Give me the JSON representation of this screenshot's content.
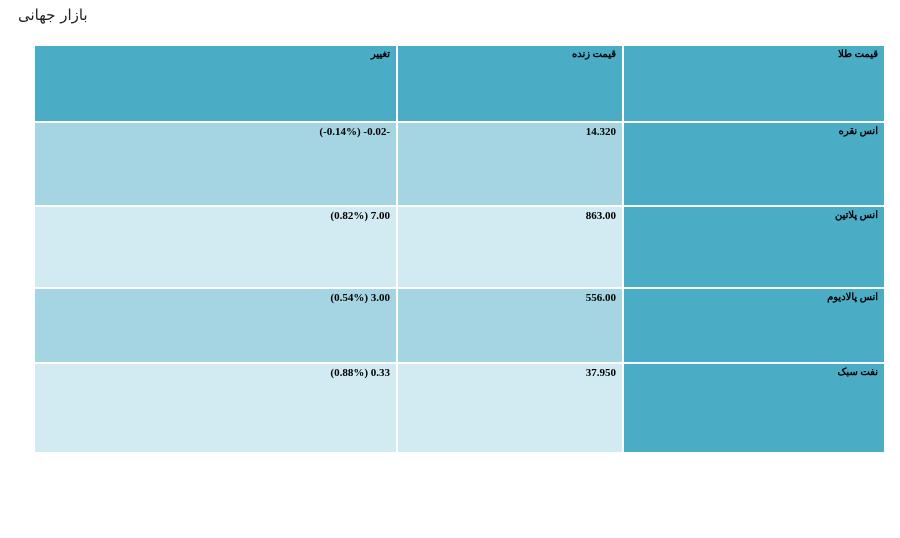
{
  "header": {
    "title": "بازار جهانی"
  },
  "table": {
    "headers": [
      "قیمت طلا",
      "قیمت زنده",
      "تغییر"
    ],
    "rows": [
      [
        "انس نقره",
        "14.320",
        "(-0.14%) -0.02-"
      ],
      [
        "انس پلاتین",
        "863.00",
        "(0.82%) 7.00"
      ],
      [
        "انس پالادیوم",
        "556.00",
        "(0.54%) 3.00"
      ],
      [
        "نفت سبک",
        "37.950",
        "(0.88%) 0.33"
      ]
    ]
  }
}
